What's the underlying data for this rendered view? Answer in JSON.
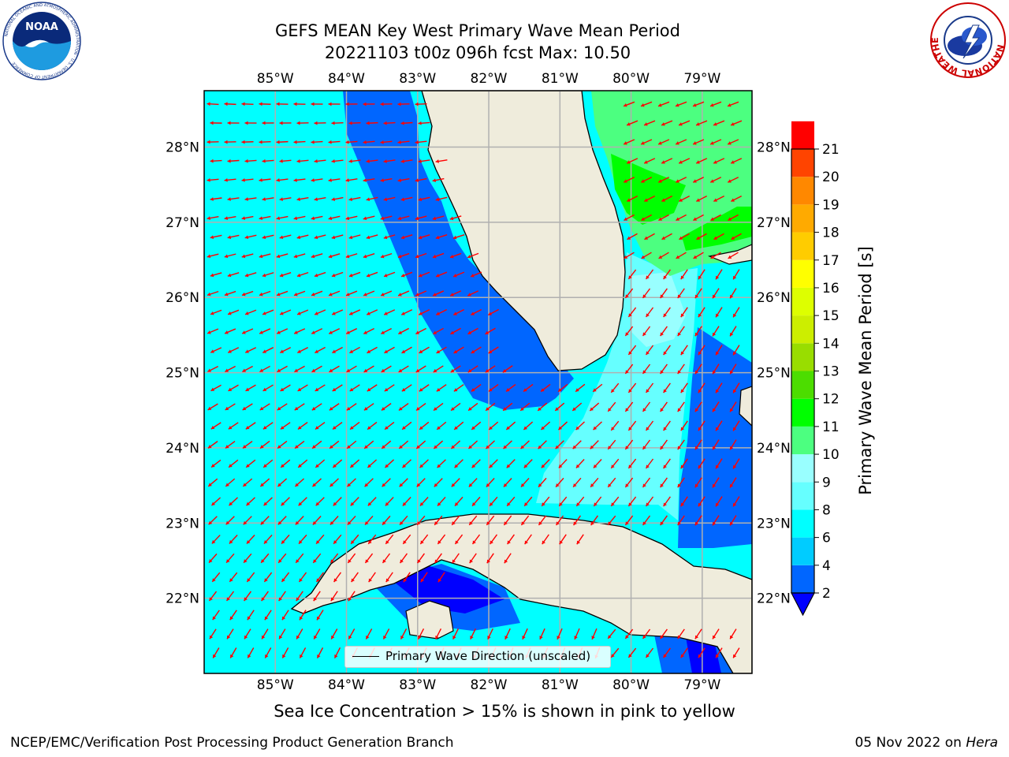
{
  "header": {
    "title_line1": "GEFS MEAN Key West Primary Wave Mean Period",
    "title_line2": "20221103 t00z 096h fcst   Max: 10.50"
  },
  "logos": {
    "noaa_text": "NOAA",
    "noaa_ring_text": "NATIONAL OCEANIC AND ATMOSPHERIC ADMINISTRATION · U.S. DEPARTMENT OF COMMERCE",
    "nws_ring_text": "NATIONAL WEATHER SERVICE"
  },
  "map": {
    "lon_ticks": [
      "85°W",
      "84°W",
      "83°W",
      "82°W",
      "81°W",
      "80°W",
      "79°W"
    ],
    "lon_values": [
      -85,
      -84,
      -83,
      -82,
      -81,
      -80,
      -79
    ],
    "lat_ticks": [
      "28°N",
      "27°N",
      "26°N",
      "25°N",
      "24°N",
      "23°N",
      "22°N"
    ],
    "lat_values": [
      28,
      27,
      26,
      25,
      24,
      23,
      22
    ],
    "extent": {
      "lon_min": -86,
      "lon_max": -78.3,
      "lat_min": 21,
      "lat_max": 28.75
    },
    "legend_label": "Primary Wave Direction (unscaled)",
    "arrow_color": "#ff0000",
    "land_color": "#efecdc",
    "grid": true
  },
  "colorbar": {
    "label": "Primary Wave Mean Period [s]",
    "levels": [
      "2",
      "4",
      "6",
      "8",
      "9",
      "10",
      "11",
      "12",
      "13",
      "14",
      "15",
      "16",
      "17",
      "18",
      "19",
      "20",
      "21"
    ],
    "colors": [
      "#0066ff",
      "#00ccff",
      "#00ffff",
      "#66ffff",
      "#99ffff",
      "#4cff80",
      "#00ff00",
      "#4cdd00",
      "#99dd00",
      "#ccee00",
      "#ddff00",
      "#ffff00",
      "#ffcc00",
      "#ffaa00",
      "#ff8800",
      "#ff4400",
      "#ff0000"
    ],
    "extend_color": "#0000ff"
  },
  "footer": {
    "caption": "Sea Ice Concentration > 15% is shown in pink to yellow",
    "left": "NCEP/EMC/Verification Post Processing Product Generation Branch",
    "right_date": "05 Nov 2022 on ",
    "right_host": "Hera"
  }
}
